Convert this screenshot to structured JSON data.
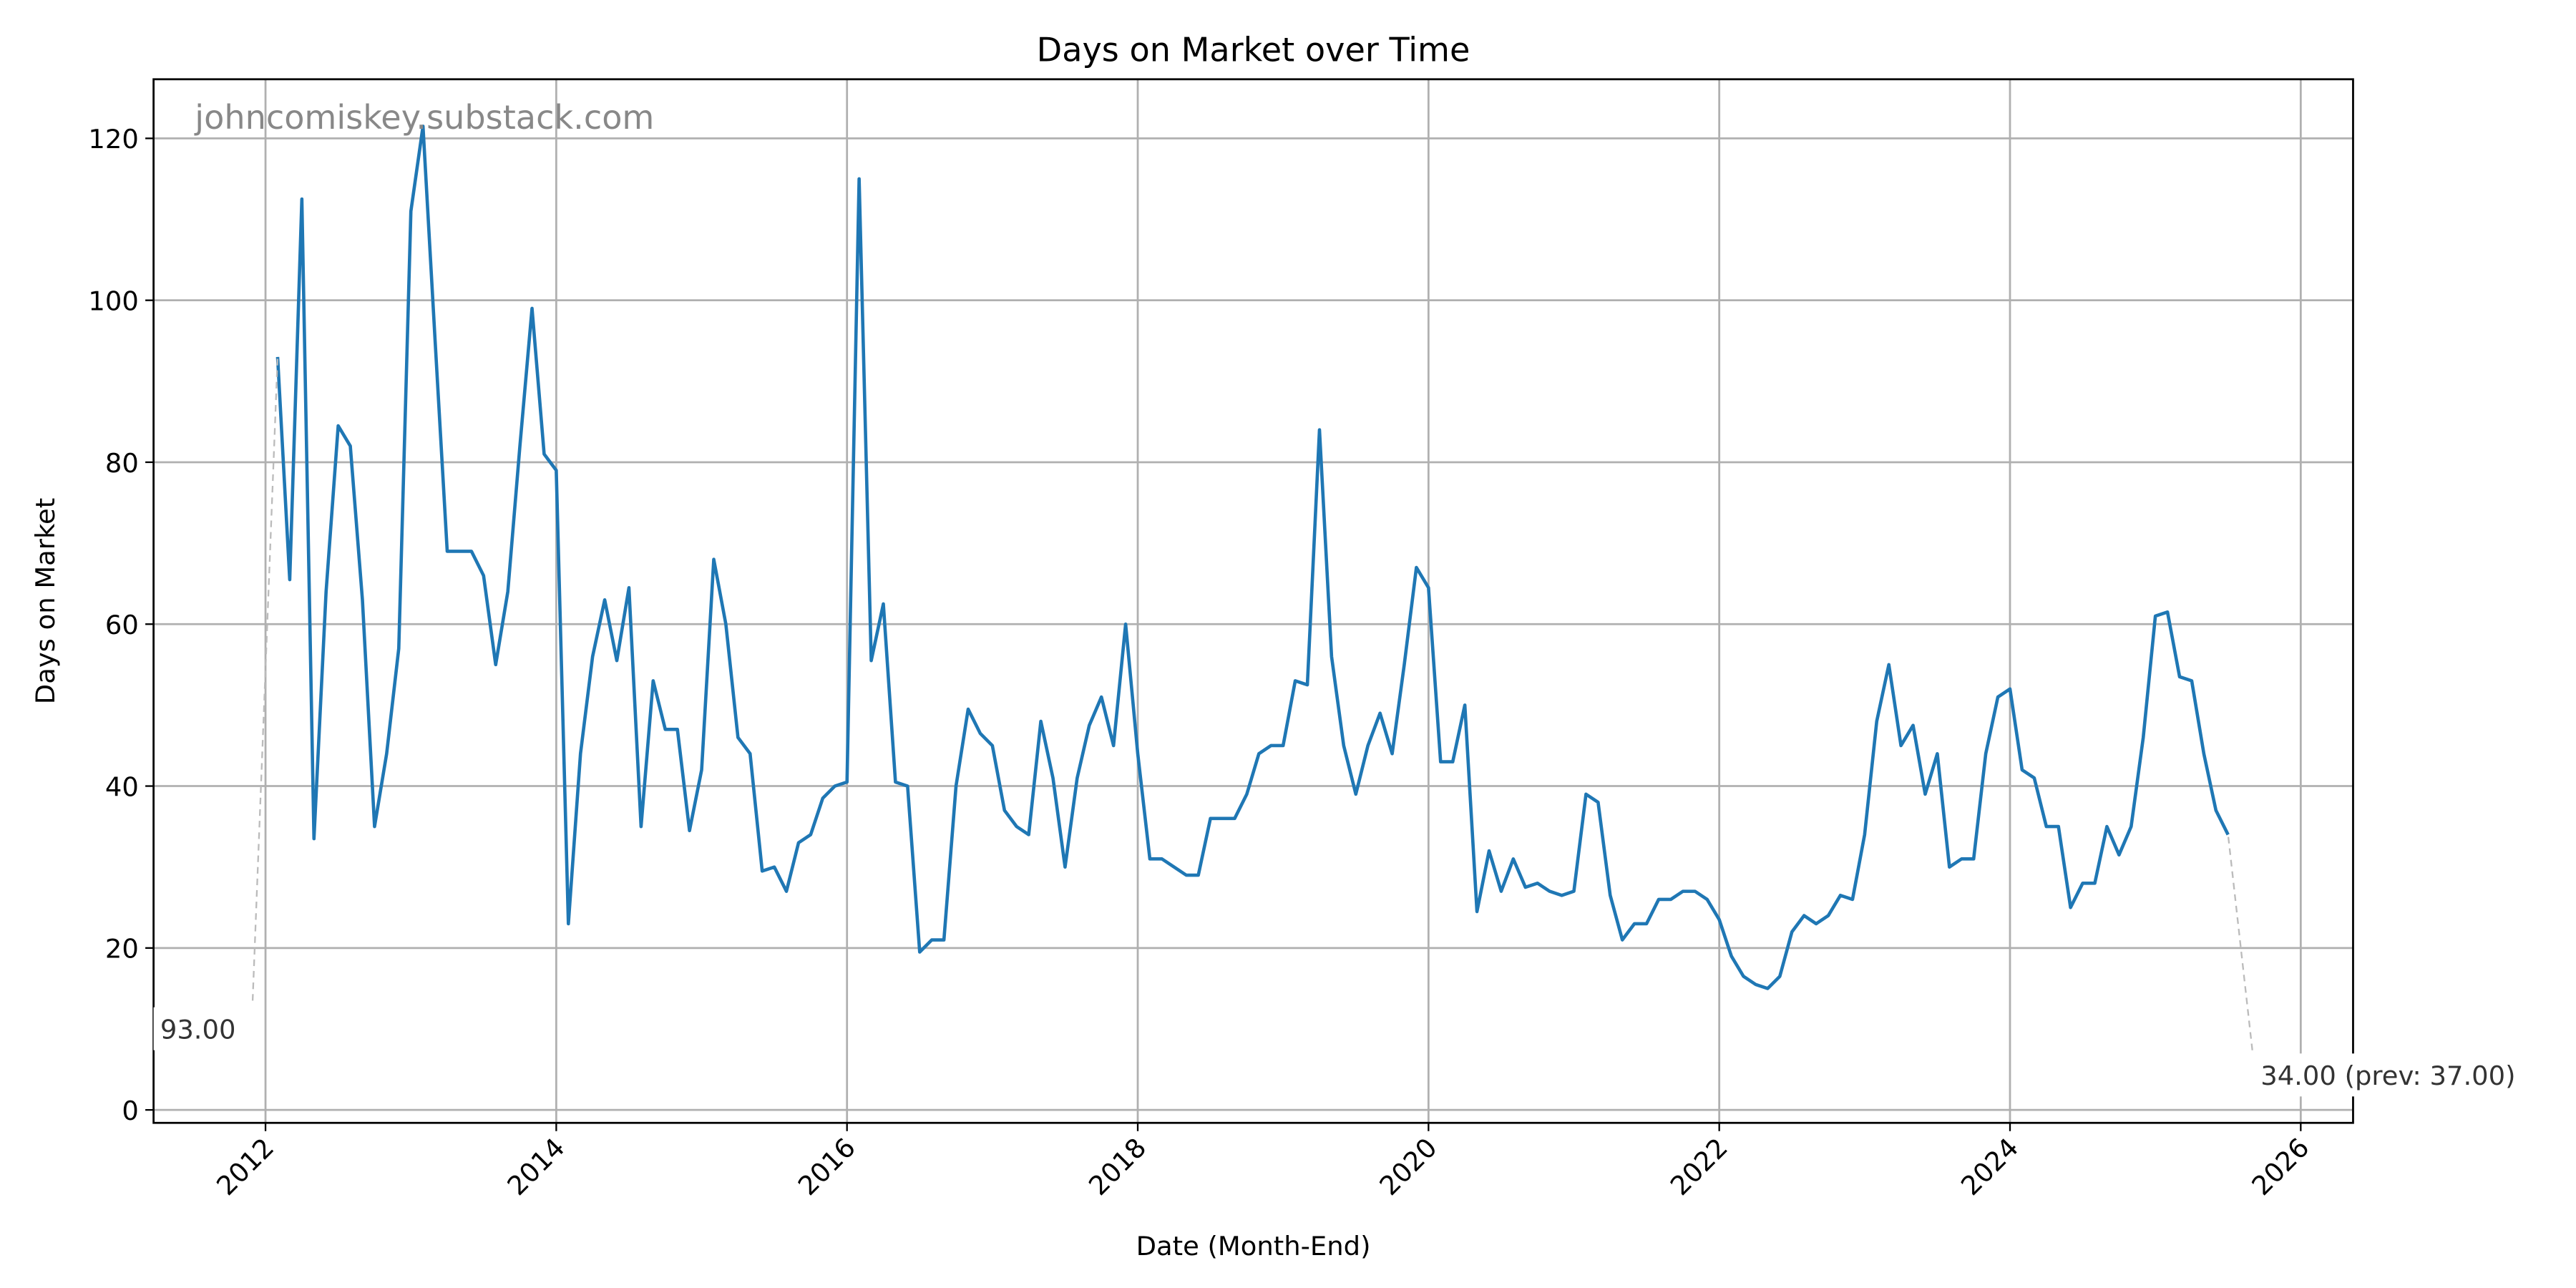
{
  "chart_data": {
    "type": "line",
    "title": "Days on Market over Time",
    "xlabel": "Date (Month-End)",
    "ylabel": "Days on Market",
    "watermark": "johncomiskey.substack.com",
    "annotations": [
      {
        "text": "93.00"
      },
      {
        "text": "34.00 (prev: 37.00)"
      }
    ],
    "x": [
      "2012-01",
      "2012-02",
      "2012-03",
      "2012-04",
      "2012-05",
      "2012-06",
      "2012-07",
      "2012-08",
      "2012-09",
      "2012-10",
      "2012-11",
      "2012-12",
      "2013-01",
      "2013-02",
      "2013-03",
      "2013-04",
      "2013-05",
      "2013-06",
      "2013-07",
      "2013-08",
      "2013-09",
      "2013-10",
      "2013-11",
      "2013-12",
      "2014-01",
      "2014-02",
      "2014-03",
      "2014-04",
      "2014-05",
      "2014-06",
      "2014-07",
      "2014-08",
      "2014-09",
      "2014-10",
      "2014-11",
      "2014-12",
      "2015-01",
      "2015-02",
      "2015-03",
      "2015-04",
      "2015-05",
      "2015-06",
      "2015-07",
      "2015-08",
      "2015-09",
      "2015-10",
      "2015-11",
      "2015-12",
      "2016-01",
      "2016-02",
      "2016-03",
      "2016-04",
      "2016-05",
      "2016-06",
      "2016-07",
      "2016-08",
      "2016-09",
      "2016-10",
      "2016-11",
      "2016-12",
      "2017-01",
      "2017-02",
      "2017-03",
      "2017-04",
      "2017-05",
      "2017-06",
      "2017-07",
      "2017-08",
      "2017-09",
      "2017-10",
      "2017-11",
      "2017-12",
      "2018-01",
      "2018-02",
      "2018-03",
      "2018-04",
      "2018-05",
      "2018-06",
      "2018-07",
      "2018-08",
      "2018-09",
      "2018-10",
      "2018-11",
      "2018-12",
      "2019-01",
      "2019-02",
      "2019-03",
      "2019-04",
      "2019-05",
      "2019-06",
      "2019-07",
      "2019-08",
      "2019-09",
      "2019-10",
      "2019-11",
      "2019-12",
      "2020-01",
      "2020-02",
      "2020-03",
      "2020-04",
      "2020-05",
      "2020-06",
      "2020-07",
      "2020-08",
      "2020-09",
      "2020-10",
      "2020-11",
      "2020-12",
      "2021-01",
      "2021-02",
      "2021-03",
      "2021-04",
      "2021-05",
      "2021-06",
      "2021-07",
      "2021-08",
      "2021-09",
      "2021-10",
      "2021-11",
      "2021-12",
      "2022-01",
      "2022-02",
      "2022-03",
      "2022-04",
      "2022-05",
      "2022-06",
      "2022-07",
      "2022-08",
      "2022-09",
      "2022-10",
      "2022-11",
      "2022-12",
      "2023-01",
      "2023-02",
      "2023-03",
      "2023-04",
      "2023-05",
      "2023-06",
      "2023-07",
      "2023-08",
      "2023-09",
      "2023-10",
      "2023-11",
      "2023-12",
      "2024-01",
      "2024-02",
      "2024-03",
      "2024-04",
      "2024-05",
      "2024-06",
      "2024-07",
      "2024-08",
      "2024-09",
      "2024-10",
      "2024-11",
      "2024-12",
      "2025-01",
      "2025-02",
      "2025-03",
      "2025-04",
      "2025-05",
      "2025-06"
    ],
    "series": [
      {
        "name": "Days on Market",
        "color": "#1f77b4",
        "values": [
          93,
          65.5,
          112.5,
          33.5,
          64,
          84.5,
          82,
          63,
          35,
          44,
          57,
          111,
          121.5,
          95,
          69,
          69,
          69,
          66,
          55,
          64,
          82,
          99,
          81,
          79,
          23,
          44,
          56,
          63,
          55.5,
          64.5,
          35,
          53,
          47,
          47,
          34.5,
          42,
          68,
          60,
          46,
          44,
          29.5,
          30,
          27,
          33,
          34,
          38.5,
          40,
          40.5,
          115,
          55.5,
          62.5,
          40.5,
          40,
          19.5,
          21,
          21,
          40,
          49.5,
          46.5,
          45,
          37,
          35,
          34,
          48,
          41,
          30,
          41,
          47.5,
          51,
          45,
          60,
          44,
          31,
          31,
          30,
          29,
          29,
          36,
          36,
          36,
          39,
          44,
          45,
          45,
          53,
          52.5,
          84,
          56,
          45,
          39,
          45,
          49,
          44,
          55,
          67,
          64.5,
          43,
          43,
          50,
          24.5,
          32,
          27,
          31,
          27.5,
          28,
          27,
          26.5,
          27,
          39,
          38,
          26.5,
          21,
          23,
          23,
          26,
          26,
          27,
          27,
          26,
          23.5,
          19,
          16.5,
          15.5,
          15,
          16.5,
          22,
          24,
          23,
          24,
          26.5,
          26,
          34,
          48,
          55,
          45,
          47.5,
          39,
          44,
          30,
          31,
          31,
          44,
          51,
          52,
          42,
          41,
          35,
          35,
          25,
          28,
          28,
          35,
          31.5,
          35,
          46,
          61,
          61.5,
          53.5,
          53,
          44,
          37,
          34
        ]
      }
    ],
    "xlim": [
      2011.23,
      2026.36
    ],
    "ylim": [
      -1.6,
      127.3
    ],
    "xticks": [
      2012,
      2014,
      2016,
      2018,
      2020,
      2022,
      2024,
      2026
    ],
    "yticks": [
      0,
      20,
      40,
      60,
      80,
      100,
      120
    ],
    "grid": true
  }
}
